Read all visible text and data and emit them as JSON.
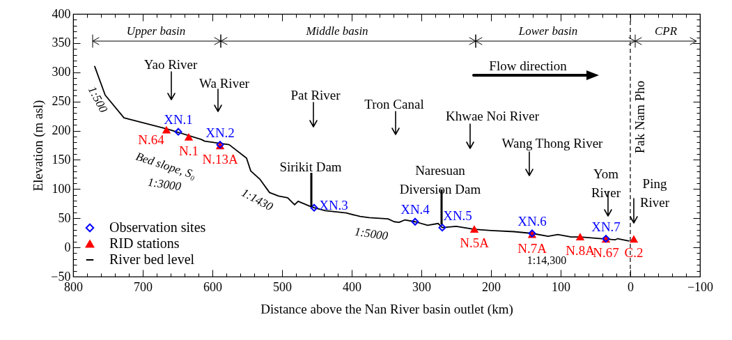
{
  "chart_data": {
    "type": "line",
    "xlabel": "Distance above the Nan River basin outlet (km)",
    "ylabel": "Elevation (m asl)",
    "xlim": [
      800,
      -100
    ],
    "ylim": [
      -50,
      400
    ],
    "xticks": [
      800,
      {
        "value": 780,
        "label": null
      },
      {
        "value": 760,
        "label": null
      },
      {
        "value": 740,
        "label": null
      },
      {
        "value": 720,
        "label": null
      },
      700,
      {
        "value": 680,
        "label": null
      },
      {
        "value": 660,
        "label": null
      },
      {
        "value": 640,
        "label": null
      },
      {
        "value": 620,
        "label": null
      },
      600,
      {
        "value": 580,
        "label": null
      },
      {
        "value": 560,
        "label": null
      },
      {
        "value": 540,
        "label": null
      },
      {
        "value": 520,
        "label": null
      },
      500,
      {
        "value": 480,
        "label": null
      },
      {
        "value": 460,
        "label": null
      },
      {
        "value": 440,
        "label": null
      },
      {
        "value": 420,
        "label": null
      },
      400,
      {
        "value": 380,
        "label": null
      },
      {
        "value": 360,
        "label": null
      },
      {
        "value": 340,
        "label": null
      },
      {
        "value": 320,
        "label": null
      },
      300,
      {
        "value": 280,
        "label": null
      },
      {
        "value": 260,
        "label": null
      },
      {
        "value": 240,
        "label": null
      },
      {
        "value": 220,
        "label": null
      },
      200,
      {
        "value": 180,
        "label": null
      },
      {
        "value": 160,
        "label": null
      },
      {
        "value": 140,
        "label": null
      },
      {
        "value": 120,
        "label": null
      },
      100,
      {
        "value": 80,
        "label": null
      },
      {
        "value": 60,
        "label": null
      },
      {
        "value": 40,
        "label": null
      },
      {
        "value": 20,
        "label": null
      },
      0,
      {
        "value": -20,
        "label": null
      },
      {
        "value": -40,
        "label": null
      },
      {
        "value": -60,
        "label": null
      },
      {
        "value": -80,
        "label": null
      },
      {
        "value": -100,
        "label": "−100"
      }
    ],
    "yticks": [
      {
        "value": -50,
        "label": "−50"
      },
      {
        "value": -40,
        "label": null
      },
      {
        "value": -30,
        "label": null
      },
      {
        "value": -20,
        "label": null
      },
      {
        "value": -10,
        "label": null
      },
      0,
      {
        "value": 10,
        "label": null
      },
      {
        "value": 20,
        "label": null
      },
      {
        "value": 30,
        "label": null
      },
      {
        "value": 40,
        "label": null
      },
      50,
      {
        "value": 60,
        "label": null
      },
      {
        "value": 70,
        "label": null
      },
      {
        "value": 80,
        "label": null
      },
      {
        "value": 90,
        "label": null
      },
      100,
      {
        "value": 110,
        "label": null
      },
      {
        "value": 120,
        "label": null
      },
      {
        "value": 130,
        "label": null
      },
      {
        "value": 140,
        "label": null
      },
      150,
      {
        "value": 160,
        "label": null
      },
      {
        "value": 170,
        "label": null
      },
      {
        "value": 180,
        "label": null
      },
      {
        "value": 190,
        "label": null
      },
      200,
      {
        "value": 210,
        "label": null
      },
      {
        "value": 220,
        "label": null
      },
      {
        "value": 230,
        "label": null
      },
      {
        "value": 240,
        "label": null
      },
      250,
      {
        "value": 260,
        "label": null
      },
      {
        "value": 270,
        "label": null
      },
      {
        "value": 280,
        "label": null
      },
      {
        "value": 290,
        "label": null
      },
      300,
      {
        "value": 310,
        "label": null
      },
      {
        "value": 320,
        "label": null
      },
      {
        "value": 330,
        "label": null
      },
      {
        "value": 340,
        "label": null
      },
      350,
      {
        "value": 360,
        "label": null
      },
      {
        "value": 370,
        "label": null
      },
      {
        "value": 380,
        "label": null
      },
      {
        "value": 390,
        "label": null
      },
      400
    ],
    "grid": false,
    "legend": "bottom left",
    "series": [
      {
        "name": "Observation sites",
        "type": "scatter",
        "marker": "diamond",
        "color": "#0000ff",
        "x": [
          649,
          589,
          454,
          309,
          270,
          141,
          35
        ],
        "values": [
          198,
          176,
          68,
          44,
          34,
          24,
          15
        ],
        "value_labels": [
          "XN.1",
          "XN.2",
          "XN.3",
          "XN.4",
          "XN.5",
          "XN.6",
          "XN.7"
        ]
      },
      {
        "name": "RID stations",
        "type": "scatter",
        "marker": "triangle",
        "color": "#ff0000",
        "x": [
          666,
          634,
          589,
          224,
          141,
          72,
          35,
          -5
        ],
        "values": [
          201,
          189,
          174,
          31,
          22,
          18,
          14,
          14
        ],
        "value_labels": [
          "N.64",
          "N.1",
          "N.13A",
          "N.5A",
          "N.7A",
          "N.8A",
          "N.67",
          "C.2"
        ]
      },
      {
        "name": "River bed level",
        "type": "line",
        "marker": "none",
        "color": "#000000",
        "x": [
          769,
          754,
          727,
          665,
          616,
          611,
          576,
          551,
          545,
          532,
          518,
          505,
          492,
          482,
          477,
          461,
          454,
          438,
          408,
          388,
          375,
          348,
          339,
          332,
          324,
          309,
          291,
          276,
          270,
          250,
          224,
          200,
          167,
          141,
          118,
          104,
          85,
          72,
          22,
          18,
          2
        ],
        "values": [
          310,
          261,
          222,
          203,
          185,
          182,
          176,
          153,
          131,
          117,
          94,
          88,
          85,
          73,
          79,
          71,
          68,
          63,
          59,
          53,
          51,
          49,
          44,
          43,
          47,
          44,
          38,
          41,
          34,
          36,
          31,
          29,
          27,
          24,
          19,
          22,
          18,
          18,
          13,
          15,
          11
        ]
      }
    ],
    "ref_lines": [
      {
        "axis": "x",
        "value": 0,
        "label": "Pak Nam Pho",
        "color": "#000000",
        "line_style": "dashed"
      }
    ],
    "annotations": [
      "Yao River",
      "Wa River",
      "Pat River",
      "Tron Canal",
      "Khwae Noi River",
      "Wang Thong River",
      "Yom River",
      "Ping River",
      "Sirikit Dam",
      "Naresuan Diversion Dam",
      "Flow direction",
      "1:500",
      "Bed slope, S₀",
      "1:3000",
      "1:1430",
      "1:5000",
      "1:14,300",
      "Upper basin",
      "Middle basin",
      "Lower basin",
      "CPR"
    ]
  }
}
